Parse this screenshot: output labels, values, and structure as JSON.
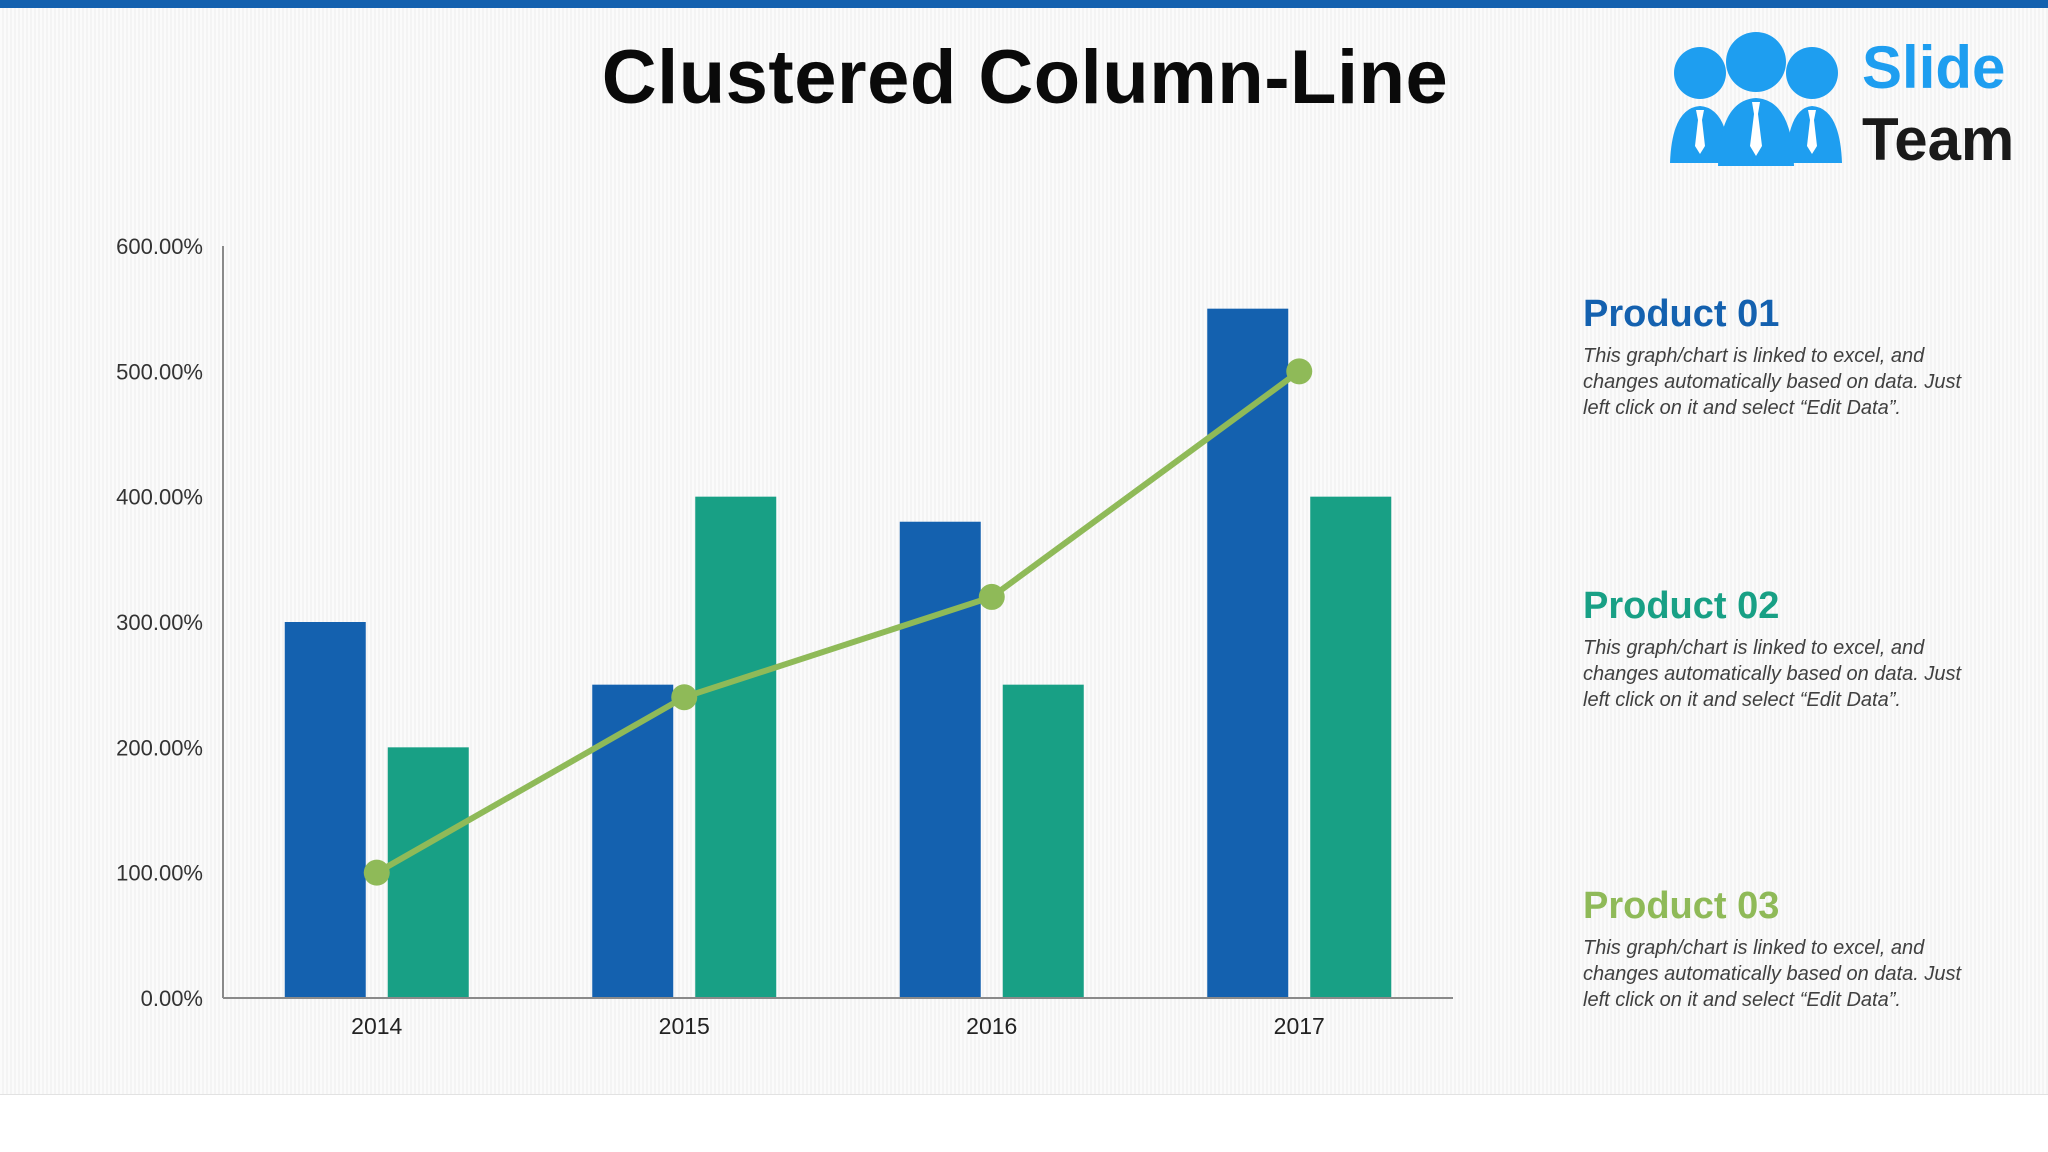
{
  "slide": {
    "title": "Clustered Column-Line",
    "logo": {
      "word1": "Slide",
      "word2": "Team",
      "color_primary": "#1e9ef0",
      "color_text": "#1a1a1a"
    },
    "accent_bar_color": "#1461af"
  },
  "legend": [
    {
      "title": "Product 01",
      "color": "#1461af",
      "description": "This graph/chart is linked to excel, and changes automatically based on data. Just left click on it and select “Edit Data”."
    },
    {
      "title": "Product 02",
      "color": "#18a085",
      "description": "This graph/chart is linked to excel, and changes automatically based on data. Just left click on it and select “Edit Data”."
    },
    {
      "title": "Product 03",
      "color": "#8fba58",
      "description": "This graph/chart is linked to excel, and changes automatically based on data. Just left click on it and select “Edit Data”."
    }
  ],
  "chart_data": {
    "type": "bar",
    "title": "Clustered Column-Line",
    "categories": [
      "2014",
      "2015",
      "2016",
      "2017"
    ],
    "series": [
      {
        "name": "Product 01",
        "type": "bar",
        "color": "#1461af",
        "values": [
          300,
          250,
          380,
          550
        ]
      },
      {
        "name": "Product 02",
        "type": "bar",
        "color": "#18a085",
        "values": [
          200,
          400,
          250,
          400
        ]
      },
      {
        "name": "Product 03",
        "type": "line",
        "color": "#8fba58",
        "values": [
          100,
          240,
          320,
          500
        ]
      }
    ],
    "ylim": [
      0,
      600
    ],
    "yticks": [
      "0.00%",
      "100.00%",
      "200.00%",
      "300.00%",
      "400.00%",
      "500.00%",
      "600.00%"
    ],
    "xlabel": "",
    "ylabel": "",
    "grid": false,
    "legend_position": "right"
  }
}
